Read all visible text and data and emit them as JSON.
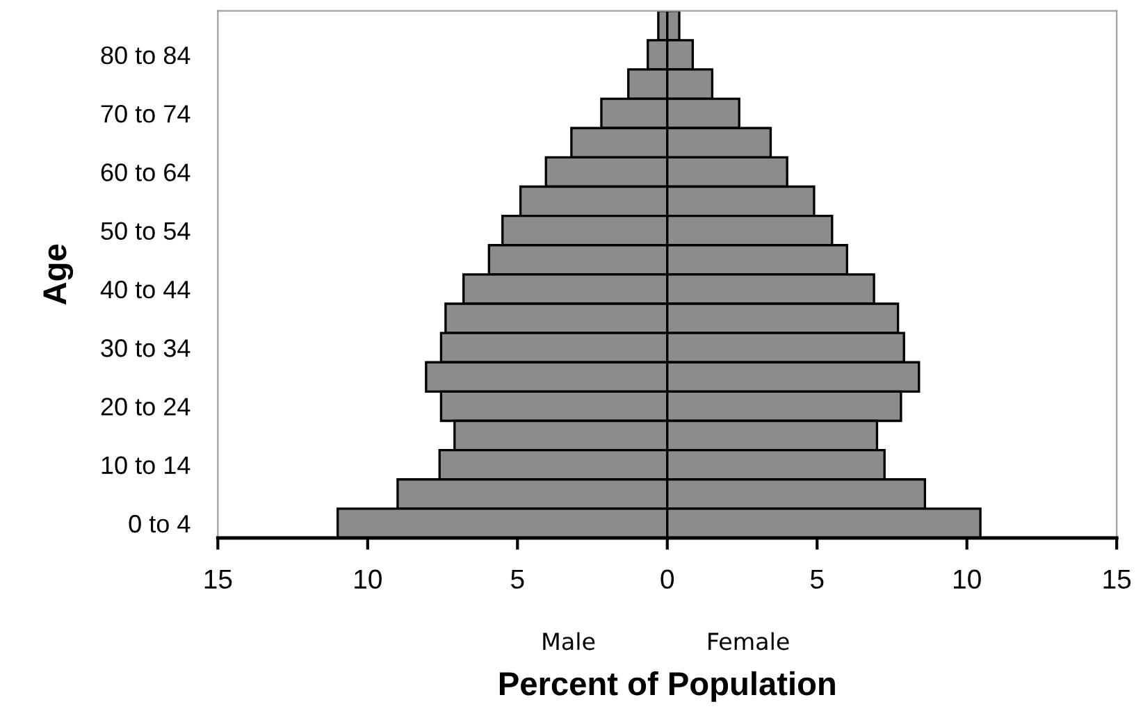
{
  "chart_data": {
    "type": "bar",
    "orientation": "horizontal",
    "stacked": true,
    "xlabel": "Percent of Population",
    "ylabel": "Age",
    "categories": [
      null,
      "80 to 84",
      null,
      "70 to 74",
      null,
      "60 to 64",
      null,
      "50 to 54",
      null,
      "40 to 44",
      null,
      "30 to 34",
      null,
      "20 to 24",
      null,
      "10 to 14",
      null,
      "0 to 4"
    ],
    "series": [
      {
        "color": "#8c8c8c",
        "values": [
          -0.3,
          -0.65,
          -1.3,
          -2.2,
          -3.2,
          -4.05,
          -4.9,
          -5.5,
          -5.95,
          -6.8,
          -7.4,
          -7.55,
          -8.05,
          -7.55,
          -7.1,
          -7.6,
          -9.0,
          -11.0
        ]
      },
      {
        "color": "#8c8c8c",
        "values": [
          0.4,
          0.85,
          1.5,
          2.4,
          3.45,
          4.0,
          4.9,
          5.5,
          6.0,
          6.9,
          7.7,
          7.9,
          8.4,
          7.8,
          7.0,
          7.25,
          8.6,
          10.45
        ]
      }
    ],
    "xlim": [
      -15,
      15
    ],
    "xticks": [
      {
        "value": -15,
        "label": "15"
      },
      {
        "value": -10,
        "label": "10"
      },
      {
        "value": -5,
        "label": "5"
      },
      0,
      5,
      10,
      15
    ],
    "annotations": [
      "Male",
      "Female"
    ]
  }
}
